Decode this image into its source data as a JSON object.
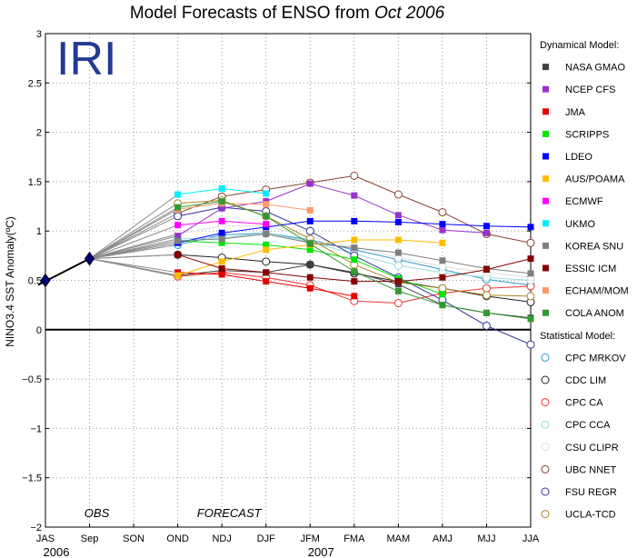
{
  "chart_data": {
    "type": "line",
    "title_main": "Model Forecasts of ENSO from ",
    "title_date": "Oct 2006",
    "ylabel": "NINO3.4 SST Anomaly(ºC)",
    "logo": "IRI",
    "ylim": [
      -2,
      3
    ],
    "yticks": [
      "3",
      "2.5",
      "2",
      "1.5",
      "1",
      "0.5",
      "0",
      "−0.5",
      "−1",
      "−1.5",
      "−2"
    ],
    "categories": [
      "JAS",
      "Sep",
      "SON",
      "OND",
      "NDJ",
      "DJF",
      "JFM",
      "FMA",
      "MAM",
      "AMJ",
      "MJJ",
      "JJA"
    ],
    "year_labels": [
      {
        "label": "2006",
        "at": 0
      },
      {
        "label": "2007",
        "at": 6
      }
    ],
    "period_labels": [
      {
        "label": "OBS",
        "at": 1
      },
      {
        "label": "FORECAST",
        "at": 4
      }
    ],
    "grid": true,
    "legend_position": "right",
    "obs": {
      "values": [
        [
          0,
          0.5
        ],
        [
          1,
          0.72
        ]
      ],
      "color": "#000080"
    },
    "legend_headers": {
      "dynamical": "Dynamical Model:",
      "statistical": "Statistical Model:"
    },
    "dynamical": [
      {
        "name": "NASA GMAO",
        "color": "#404040",
        "values": [
          0.55,
          0.6,
          0.58,
          0.66,
          0.58,
          0.46,
          0.25,
          0.17,
          0.12
        ]
      },
      {
        "name": "NCEP CFS",
        "color": "#9933cc",
        "values": [
          0.95,
          1.23,
          1.3,
          1.48,
          1.36,
          1.16,
          1.01,
          0.98,
          null
        ]
      },
      {
        "name": "JMA",
        "color": "#e60000",
        "values": [
          0.58,
          0.56,
          0.49,
          0.42,
          0.34,
          null,
          null,
          null,
          null
        ]
      },
      {
        "name": "SCRIPPS",
        "color": "#00e600",
        "values": [
          0.9,
          0.88,
          0.86,
          0.81,
          0.71,
          0.52,
          0.36,
          null,
          null
        ]
      },
      {
        "name": "LDEO",
        "color": "#0000ff",
        "values": [
          0.88,
          0.98,
          1.04,
          1.1,
          1.1,
          1.09,
          1.07,
          1.05,
          1.04
        ]
      },
      {
        "name": "AUS/POAMA",
        "color": "#ffbb00",
        "values": [
          0.55,
          0.69,
          0.81,
          0.86,
          0.91,
          0.91,
          0.88,
          null,
          null
        ]
      },
      {
        "name": "ECMWF",
        "color": "#ff00ff",
        "values": [
          1.06,
          1.1,
          1.07,
          null,
          null,
          null,
          null,
          null,
          null
        ]
      },
      {
        "name": "UKMO",
        "color": "#00eeff",
        "values": [
          1.37,
          1.43,
          1.38,
          null,
          null,
          null,
          null,
          null,
          null
        ]
      },
      {
        "name": "KOREA SNU",
        "color": "#808080",
        "values": [
          0.9,
          0.92,
          0.97,
          0.88,
          0.83,
          0.78,
          0.7,
          0.62,
          0.57
        ]
      },
      {
        "name": "ESSIC ICM",
        "color": "#880000",
        "values": [
          0.76,
          0.62,
          0.58,
          0.53,
          0.49,
          0.49,
          0.53,
          0.61,
          0.72
        ]
      },
      {
        "name": "ECHAM/MOM",
        "color": "#ff9966",
        "values": [
          1.22,
          1.28,
          1.27,
          1.21,
          null,
          null,
          null,
          null,
          null
        ]
      },
      {
        "name": "COLA ANOM",
        "color": "#339933",
        "values": [
          1.24,
          1.3,
          1.15,
          0.87,
          0.59,
          0.39,
          0.25,
          0.17,
          0.11
        ]
      }
    ],
    "statistical": [
      {
        "name": "CPC MRKOV",
        "color": "#3399cc",
        "values": [
          0.86,
          0.96,
          0.98,
          0.91,
          0.81,
          0.71,
          0.61,
          0.51,
          0.45
        ]
      },
      {
        "name": "CDC LIM",
        "color": "#222222",
        "values": [
          0.76,
          0.73,
          0.69,
          0.66,
          0.57,
          0.49,
          0.42,
          0.34,
          0.28
        ]
      },
      {
        "name": "CPC CA",
        "color": "#ee3333",
        "values": [
          0.54,
          0.58,
          0.53,
          0.45,
          0.29,
          0.27,
          0.37,
          0.42,
          0.44
        ]
      },
      {
        "name": "CPC CCA",
        "color": "#99dddd",
        "values": [
          0.92,
          0.93,
          0.98,
          0.89,
          0.77,
          0.65,
          0.58,
          0.53,
          0.5
        ]
      },
      {
        "name": "CSU CLIPR",
        "color": "#dddddd",
        "values": [
          0.97,
          1.05,
          1.05,
          0.94,
          0.84,
          0.73,
          0.64,
          0.58,
          0.53
        ]
      },
      {
        "name": "UBC NNET",
        "color": "#884433",
        "values": [
          1.18,
          1.35,
          1.42,
          1.49,
          1.56,
          1.37,
          1.19,
          0.97,
          0.88
        ]
      },
      {
        "name": "FSU REGR",
        "color": "#333399",
        "values": [
          1.15,
          1.24,
          1.2,
          1.0,
          0.75,
          0.53,
          0.3,
          0.04,
          -0.15
        ]
      },
      {
        "name": "UCLA-TCD",
        "color": "#aa8822",
        "values": [
          1.28,
          1.31,
          1.15,
          0.92,
          0.66,
          0.48,
          0.42,
          0.35,
          0.34
        ]
      }
    ]
  }
}
